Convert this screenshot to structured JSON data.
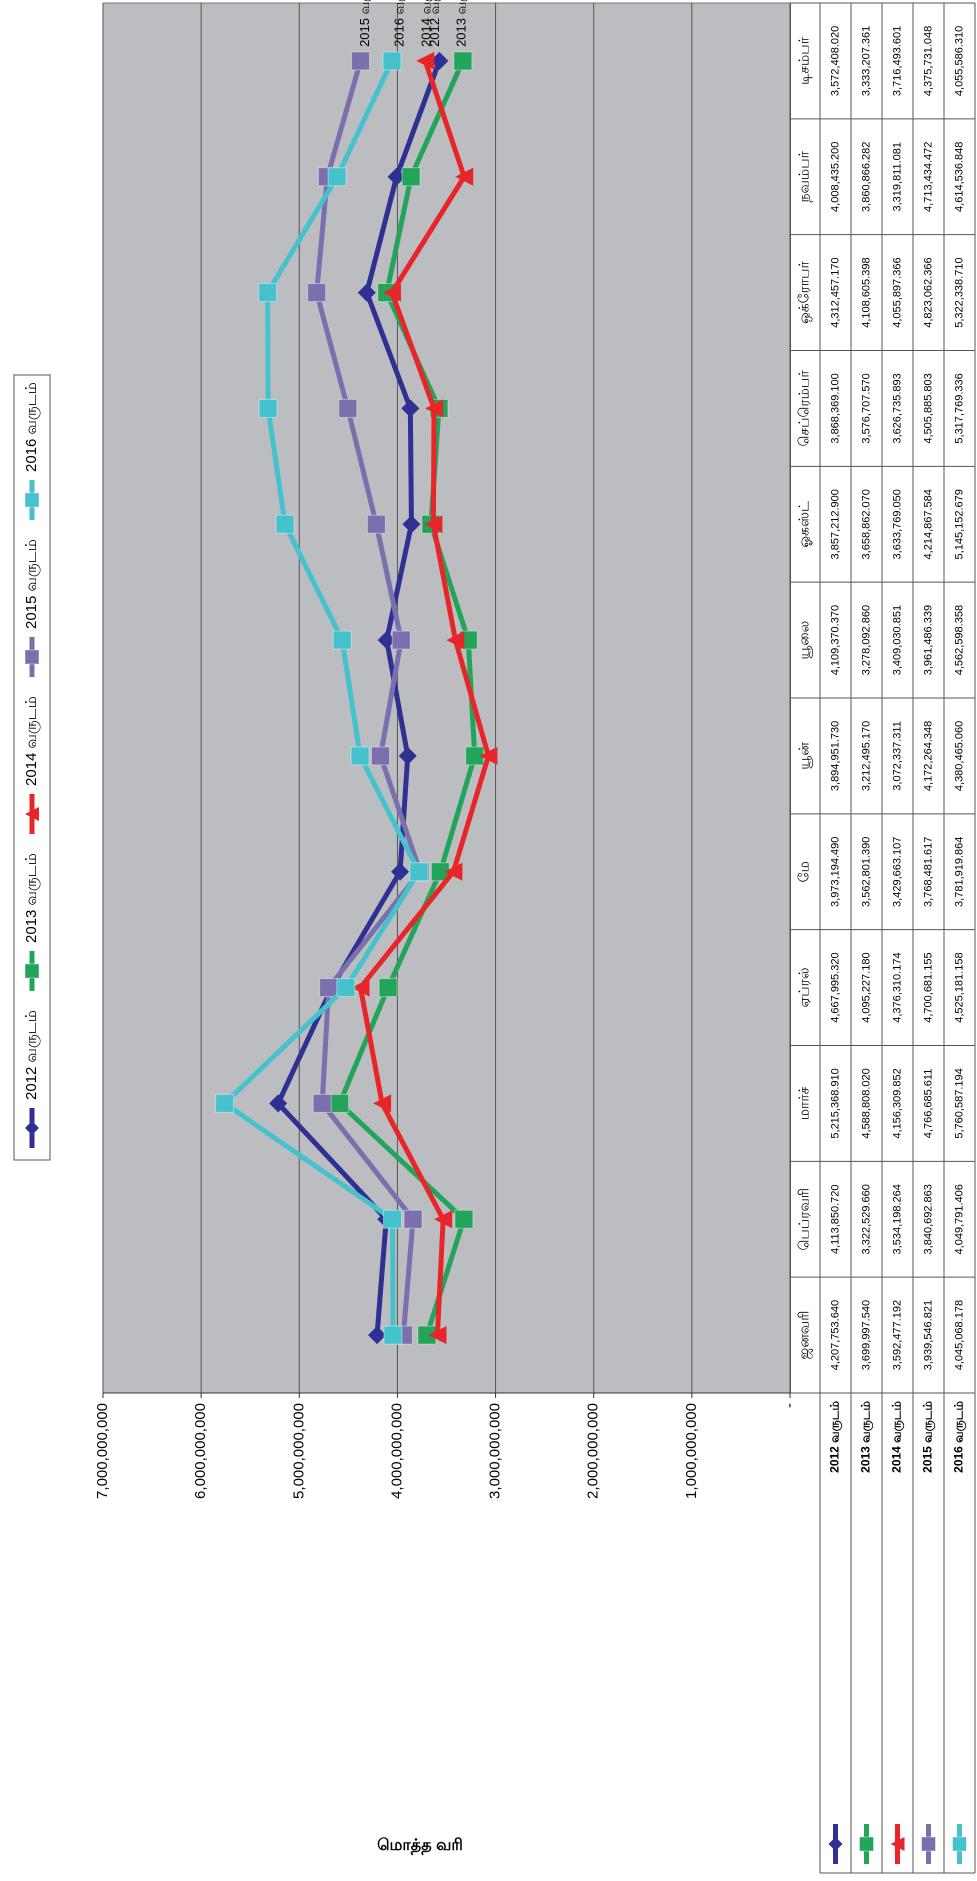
{
  "chart_data": {
    "type": "line",
    "y_axis_label": "மொத்த வரி",
    "categories": [
      "ஜனவரி",
      "பெப்ரவரி",
      "மார்ச்",
      "ஏப்ரல்",
      "மே",
      "யூன்",
      "யூலை",
      "ஓகஸ்ட்",
      "செப்ரெம்பர்",
      "ஒக்ரோபர்",
      "நவம்பர்",
      "டிசம்பர்"
    ],
    "ylim": [
      0,
      7000000000
    ],
    "yticks": [
      {
        "value": 0,
        "label": "-"
      },
      {
        "value": 1000000000,
        "label": "1,000,000,000"
      },
      {
        "value": 2000000000,
        "label": "2,000,000,000"
      },
      {
        "value": 3000000000,
        "label": "3,000,000,000"
      },
      {
        "value": 4000000000,
        "label": "4,000,000,000"
      },
      {
        "value": 5000000000,
        "label": "5,000,000,000"
      },
      {
        "value": 6000000000,
        "label": "6,000,000,000"
      },
      {
        "value": 7000000000,
        "label": "7,000,000,000"
      }
    ],
    "grid": true,
    "legend": "top",
    "data_table": true,
    "series": [
      {
        "name": "2012 வருடம்",
        "color": "#2e3192",
        "marker": "diamond",
        "values": [
          4207753640,
          4113850720,
          5215368910,
          4667995320,
          3973194490,
          3894951730,
          4109370370,
          3857212900,
          3868369100,
          4312457170,
          4008435200,
          3572408020
        ],
        "value_labels": [
          "4,207,753.640",
          "4,113,850.720",
          "5,215,368.910",
          "4,667,995.320",
          "3,973,194.490",
          "3,894,951.730",
          "4,109,370.370",
          "3,857,212.900",
          "3,868,369.100",
          "4,312,457.170",
          "4,008,435.200",
          "3,572,408.020"
        ]
      },
      {
        "name": "2013 வருடம்",
        "color": "#22a559",
        "marker": "square",
        "values": [
          3699997540,
          3322529660,
          4588808020,
          4095227180,
          3562801390,
          3212495170,
          3278092860,
          3658862070,
          3576707570,
          4108605398,
          3860866282,
          3333207361
        ],
        "value_labels": [
          "3,699,997.540",
          "3,322,529.660",
          "4,588,808.020",
          "4,095,227.180",
          "3,562,801.390",
          "3,212,495.170",
          "3,278,092.860",
          "3,658,862.070",
          "3,576,707.570",
          "4,108,605.398",
          "3,860,866.282",
          "3,333,207.361"
        ]
      },
      {
        "name": "2014 வருடம்",
        "color": "#e8262a",
        "marker": "triangle",
        "values": [
          3592477192,
          3534198264,
          4156309852,
          4376310174,
          3429663107,
          3072337311,
          3409030851,
          3633769050,
          3626735893,
          4055897366,
          3319811081,
          3716493601
        ],
        "value_labels": [
          "3,592,477.192",
          "3,534,198.264",
          "4,156,309.852",
          "4,376,310.174",
          "3,429,663.107",
          "3,072,337.311",
          "3,409,030.851",
          "3,633,769.050",
          "3,626,735.893",
          "4,055,897.366",
          "3,319,811.081",
          "3,716,493.601"
        ]
      },
      {
        "name": "2015 வருடம்",
        "color": "#7b6fad",
        "marker": "square",
        "values": [
          3939546821,
          3840692863,
          4766685611,
          4700681155,
          3768481617,
          4172264348,
          3961486339,
          4214867584,
          4505885803,
          4823062366,
          4713434472,
          4375731048
        ],
        "value_labels": [
          "3,939,546.821",
          "3,840,692.863",
          "4,766,685.611",
          "4,700,681.155",
          "3,768,481.617",
          "4,172,264.348",
          "3,961,486.339",
          "4,214,867.584",
          "4,505,885.803",
          "4,823,062.366",
          "4,713,434.472",
          "4,375,731.048"
        ]
      },
      {
        "name": "2016 வருடம்",
        "color": "#46c2cc",
        "marker": "square",
        "values": [
          4045068178,
          4049791406,
          5760587194,
          4525181158,
          3781919864,
          4380465060,
          4562598358,
          5145152679,
          5317769336,
          5322338710,
          4614536848,
          4055586310
        ],
        "value_labels": [
          "4,045,068.178",
          "4,049,791.406",
          "5,760,587.194",
          "4,525,181.158",
          "3,781,919.864",
          "4,380,465.060",
          "4,562,598.358",
          "5,145,152.679",
          "5,317,769.336",
          "5,322,338.710",
          "4,614,536.848",
          "4,055,586.310"
        ]
      }
    ]
  }
}
